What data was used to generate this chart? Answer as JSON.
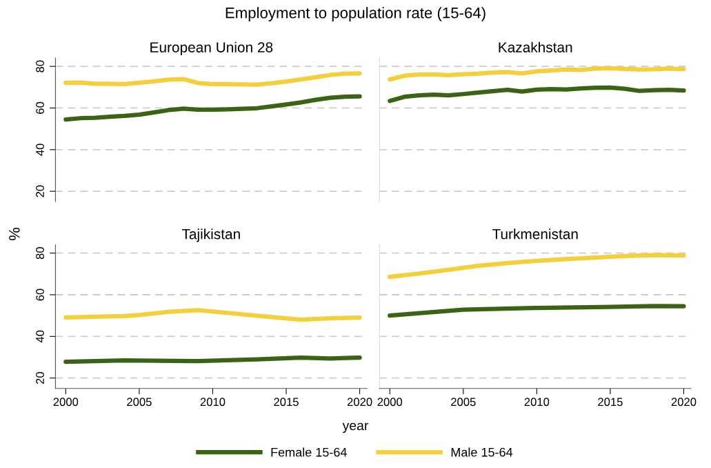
{
  "chart_data": [
    {
      "type": "line",
      "title": "Employment to population rate (15-64)",
      "subtitle": "European Union 28",
      "ylabel": "%",
      "legend": "bottom",
      "grid": "y",
      "line_style": "solid",
      "tick_labels": "y",
      "xlim": [
        1999.3,
        2020.5
      ],
      "ylim": [
        15,
        84
      ],
      "yticks": [
        20,
        40,
        60,
        80
      ],
      "xticks": [
        2000,
        2005,
        2010,
        2015,
        2020
      ],
      "x": [
        2000,
        2001,
        2002,
        2003,
        2004,
        2005,
        2006,
        2007,
        2008,
        2009,
        2010,
        2011,
        2012,
        2013,
        2014,
        2015,
        2016,
        2017,
        2018,
        2019,
        2020
      ],
      "series": [
        {
          "name": "Female 15-64",
          "color": "#3b6314",
          "values": [
            54.5,
            55.1,
            55.3,
            55.8,
            56.2,
            56.8,
            57.9,
            59.0,
            59.7,
            59.2,
            59.2,
            59.4,
            59.6,
            59.9,
            60.8,
            61.7,
            62.7,
            63.9,
            64.9,
            65.4,
            65.6
          ]
        },
        {
          "name": "Male 15-64",
          "color": "#f2cf3b",
          "values": [
            72.1,
            72.2,
            71.6,
            71.6,
            71.5,
            72.1,
            72.8,
            73.6,
            73.9,
            72.0,
            71.5,
            71.5,
            71.3,
            71.2,
            71.9,
            72.7,
            73.7,
            74.8,
            75.9,
            76.5,
            76.6
          ]
        }
      ]
    },
    {
      "type": "line",
      "subtitle": "Kazakhstan",
      "grid": "y",
      "line_style": "solid",
      "tick_labels": false,
      "xlim": [
        1999.3,
        2020.5
      ],
      "ylim": [
        15,
        84
      ],
      "yticks": [
        20,
        40,
        60,
        80
      ],
      "xticks": [
        2000,
        2005,
        2010,
        2015,
        2020
      ],
      "x": [
        2000,
        2001,
        2002,
        2003,
        2004,
        2005,
        2006,
        2007,
        2008,
        2009,
        2010,
        2011,
        2012,
        2013,
        2014,
        2015,
        2016,
        2017,
        2018,
        2019,
        2020
      ],
      "series": [
        {
          "name": "Female 15-64",
          "color": "#3b6314",
          "values": [
            63.4,
            65.4,
            66.1,
            66.4,
            66.1,
            66.7,
            67.4,
            68.1,
            68.7,
            67.9,
            68.8,
            69.1,
            68.9,
            69.4,
            69.7,
            69.8,
            69.2,
            68.2,
            68.6,
            68.7,
            68.4
          ]
        },
        {
          "name": "Male 15-64",
          "color": "#f2cf3b",
          "values": [
            73.7,
            75.5,
            76.1,
            76.1,
            75.8,
            76.2,
            76.5,
            77.0,
            77.3,
            76.6,
            77.6,
            78.0,
            78.5,
            78.3,
            78.9,
            79.1,
            78.8,
            78.5,
            78.6,
            78.9,
            78.7
          ]
        }
      ]
    },
    {
      "type": "line",
      "subtitle": "Tajikistan",
      "xlabel": "year",
      "grid": "y",
      "line_style": "solid",
      "xlim": [
        1999.3,
        2020.5
      ],
      "ylim": [
        15,
        84
      ],
      "yticks": [
        20,
        40,
        60,
        80
      ],
      "xticks": [
        2000,
        2005,
        2010,
        2015,
        2020
      ],
      "series": [
        {
          "name": "Female 15-64",
          "color": "#3b6314",
          "x": [
            2000,
            2004,
            2009,
            2013,
            2016,
            2018,
            2020
          ],
          "values": [
            27.8,
            28.5,
            28.1,
            29.0,
            29.8,
            29.4,
            29.8
          ]
        },
        {
          "name": "Male 15-64",
          "color": "#f2cf3b",
          "x": [
            2000,
            2004,
            2005,
            2007,
            2009,
            2011,
            2013,
            2016,
            2018,
            2020
          ],
          "values": [
            49.1,
            49.8,
            50.3,
            51.8,
            52.6,
            51.3,
            49.9,
            48.0,
            48.7,
            49.0
          ]
        }
      ]
    },
    {
      "type": "line",
      "subtitle": "Turkmenistan",
      "grid": "y",
      "line_style": "solid",
      "tick_labels": "x",
      "xlim": [
        1999.3,
        2020.5
      ],
      "ylim": [
        15,
        84
      ],
      "yticks": [
        20,
        40,
        60,
        80
      ],
      "xticks": [
        2000,
        2005,
        2010,
        2015,
        2020
      ],
      "series": [
        {
          "name": "Female 15-64",
          "color": "#3b6314",
          "x": [
            2000,
            2005,
            2010,
            2015,
            2018,
            2020
          ],
          "values": [
            50.0,
            52.8,
            53.7,
            54.2,
            54.6,
            54.5
          ]
        },
        {
          "name": "Male 15-64",
          "color": "#f2cf3b",
          "x": [
            2000,
            2002,
            2004,
            2006,
            2008,
            2010,
            2012,
            2014,
            2016,
            2018,
            2020
          ],
          "values": [
            68.6,
            70.2,
            72.0,
            73.9,
            75.2,
            76.3,
            77.1,
            77.9,
            78.6,
            79.0,
            78.9
          ]
        }
      ]
    }
  ]
}
